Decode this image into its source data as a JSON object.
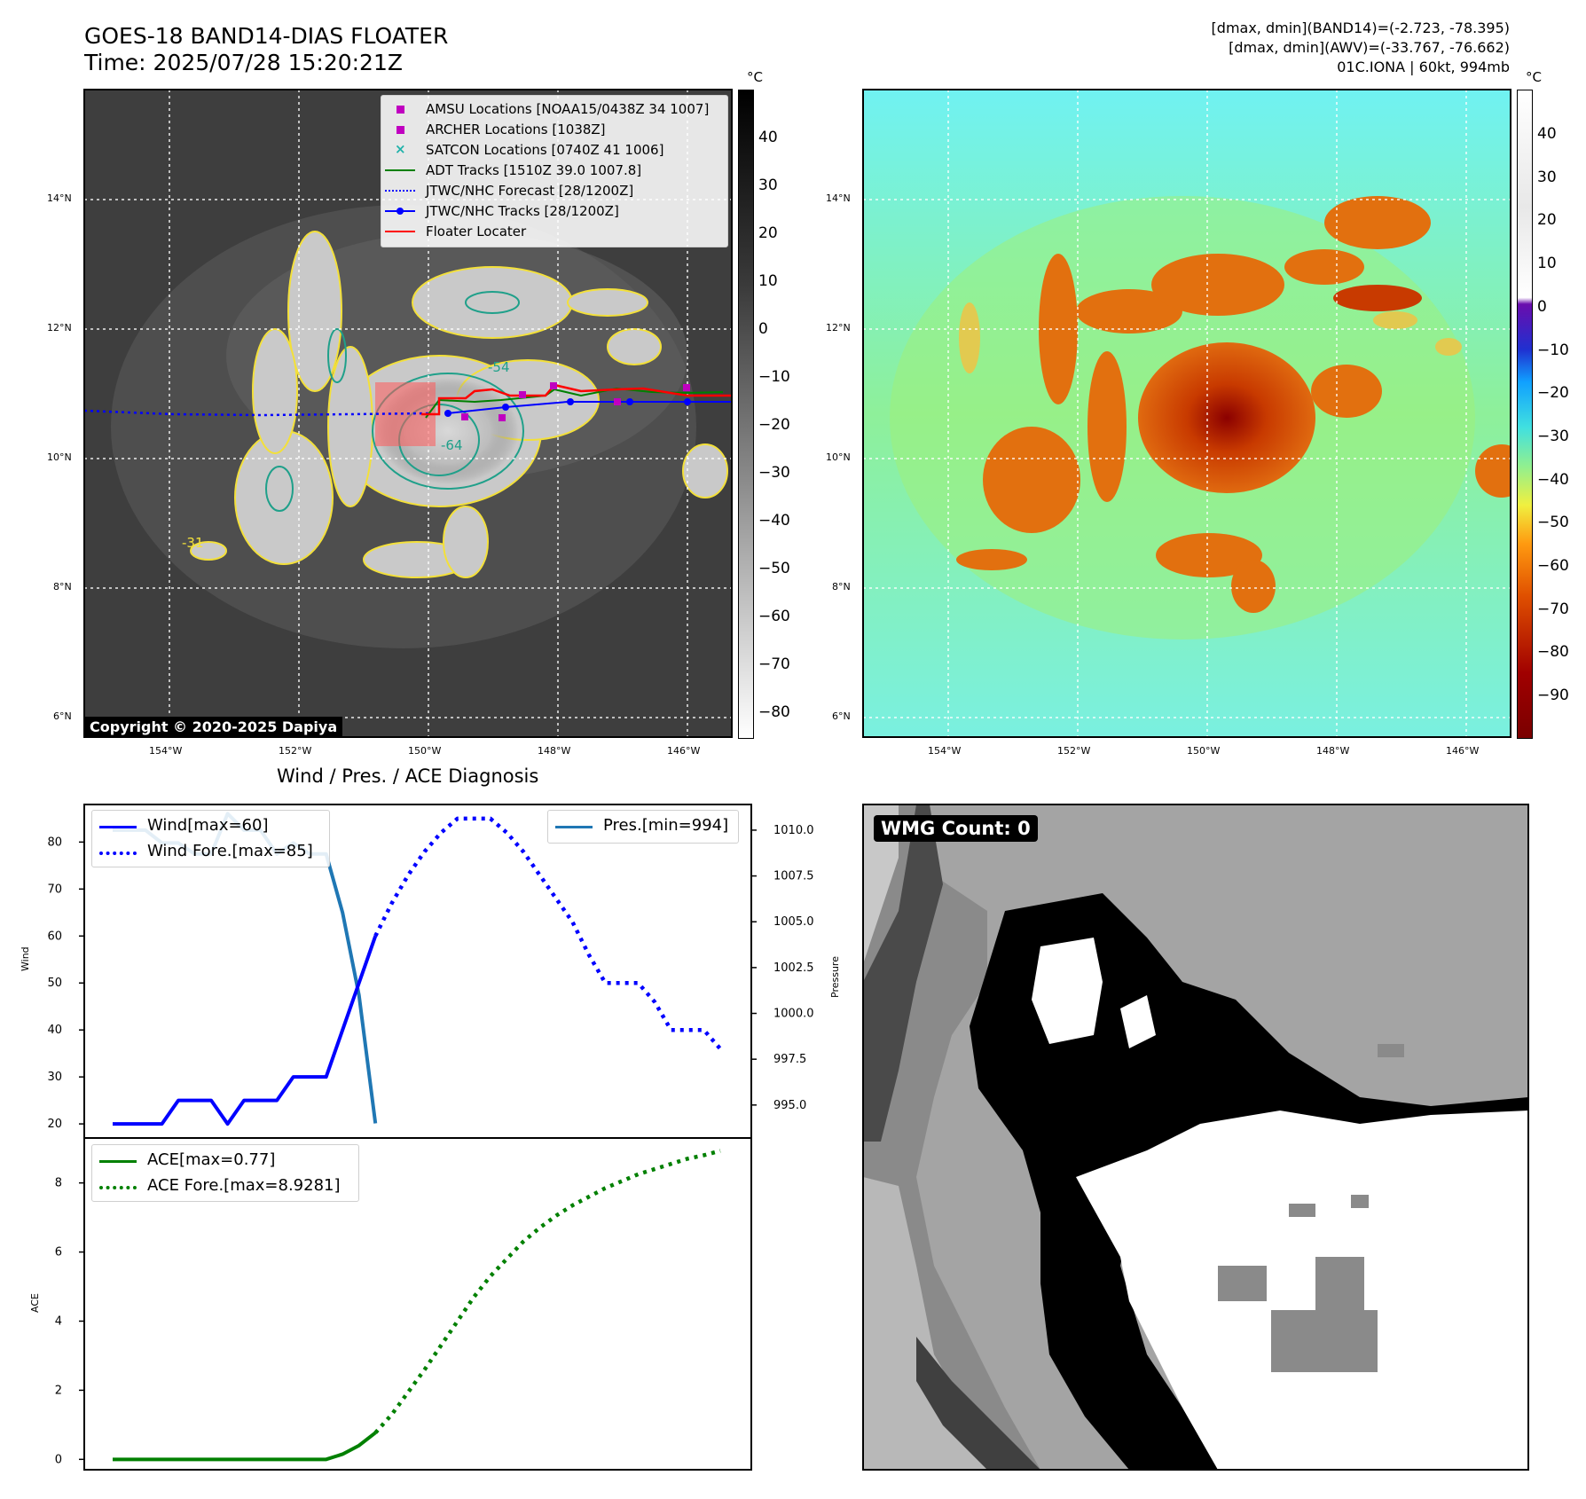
{
  "header": {
    "title_line1": "GOES-18 BAND14-DIAS FLOATER",
    "title_line2": "Time: 2025/07/28 15:20:21Z",
    "stats_line1": "[dmax, dmin](BAND14)=(-2.723, -78.395)",
    "stats_line2": "[dmax, dmin](AWV)=(-33.767, -76.662)",
    "stats_line3": "01C.IONA | 60kt, 994mb"
  },
  "colorbar_unit": "°C",
  "map": {
    "lat_ticks": [
      "14°N",
      "12°N",
      "10°N",
      "8°N",
      "6°N"
    ],
    "lon_ticks": [
      "154°W",
      "152°W",
      "150°W",
      "148°W",
      "146°W"
    ],
    "copyright": "Copyright © 2020-2025 Dapiya",
    "contour_labels": [
      "-31",
      "-54",
      "-64"
    ],
    "legend": [
      {
        "label": "AMSU Locations [NOAA15/0438Z 34 1007]",
        "color": "#c000c0",
        "marker": "square"
      },
      {
        "label": "ARCHER Locations [1038Z]",
        "color": "#c000c0",
        "marker": "square"
      },
      {
        "label": "SATCON Locations [0740Z 41 1006]",
        "color": "#20b2aa",
        "marker": "x"
      },
      {
        "label": "ADT Tracks [1510Z 39.0 1007.8]",
        "color": "#008000",
        "marker": "line"
      },
      {
        "label": "JTWC/NHC Forecast [28/1200Z]",
        "color": "#0000ff",
        "marker": "dotted"
      },
      {
        "label": "JTWC/NHC Tracks [28/1200Z]",
        "color": "#0000ff",
        "marker": "line-dot"
      },
      {
        "label": "Floater Locater",
        "color": "#ff0000",
        "marker": "line"
      }
    ],
    "colorbar_gray_ticks": [
      "40",
      "30",
      "20",
      "10",
      "0",
      "−10",
      "−20",
      "−30",
      "−40",
      "−50",
      "−60",
      "−70",
      "−80"
    ],
    "colorbar_color_ticks": [
      "40",
      "30",
      "20",
      "10",
      "0",
      "−10",
      "−20",
      "−30",
      "−40",
      "−50",
      "−60",
      "−70",
      "−80",
      "−90"
    ]
  },
  "diag": {
    "title": "Wind / Pres. / ACE Diagnosis",
    "wind_ylabel": "Wind",
    "pres_ylabel": "Pressure",
    "ace_ylabel": "ACE",
    "wind_legend": [
      "Wind[max=60]",
      "Wind Fore.[max=85]"
    ],
    "pres_legend": [
      "Pres.[min=994]"
    ],
    "ace_legend": [
      "ACE[max=0.77]",
      "ACE Fore.[max=8.9281]"
    ],
    "wmg": "WMG Count: 0"
  },
  "chart_data": [
    {
      "type": "line",
      "title": "Wind / Pres. / ACE Diagnosis",
      "ylabel": "Wind",
      "ylim": [
        17,
        88
      ],
      "yticks": [
        20,
        30,
        40,
        50,
        60,
        70,
        80
      ],
      "series": [
        {
          "name": "Wind[max=60]",
          "color": "#0000ff",
          "style": "solid",
          "x": [
            0,
            1,
            2,
            3,
            4,
            5,
            6,
            7,
            8,
            9,
            10,
            11,
            12,
            13,
            14,
            15,
            16
          ],
          "values": [
            20,
            20,
            20,
            20,
            25,
            25,
            25,
            20,
            25,
            25,
            25,
            30,
            30,
            30,
            40,
            50,
            60
          ]
        },
        {
          "name": "Wind Fore.[max=85]",
          "color": "#0000ff",
          "style": "dotted",
          "x": [
            16,
            17,
            18,
            19,
            20,
            21,
            22,
            23,
            24,
            25,
            26,
            27,
            28,
            29,
            30,
            31,
            32,
            33,
            34,
            35,
            36,
            37
          ],
          "values": [
            60,
            67,
            73,
            78,
            82,
            85,
            85,
            85,
            82,
            78,
            73,
            68,
            63,
            56,
            50,
            50,
            50,
            46,
            40,
            40,
            40,
            36
          ]
        }
      ]
    },
    {
      "type": "line",
      "ylabel": "Pressure",
      "ylim": [
        993.2,
        1011.4
      ],
      "yticks": [
        995.0,
        997.5,
        1000.0,
        1002.5,
        1005.0,
        1007.5,
        1010.0
      ],
      "series": [
        {
          "name": "Pres.[min=994]",
          "color": "#1f77b4",
          "style": "solid",
          "x": [
            0,
            1,
            2,
            3,
            4,
            5,
            6,
            7,
            8,
            9,
            10,
            11,
            12,
            13,
            14,
            15,
            16
          ],
          "values": [
            1010.0,
            1010.0,
            1010.0,
            1009.3,
            1009.3,
            1008.7,
            1008.7,
            1010.9,
            1010.0,
            1010.0,
            1008.7,
            1009.3,
            1008.7,
            1008.7,
            1005.5,
            1001.0,
            994.0
          ]
        }
      ]
    },
    {
      "type": "line",
      "ylabel": "ACE",
      "ylim": [
        -0.3,
        9.3
      ],
      "yticks": [
        0,
        2,
        4,
        6,
        8
      ],
      "series": [
        {
          "name": "ACE[max=0.77]",
          "color": "#008000",
          "style": "solid",
          "x": [
            0,
            1,
            2,
            3,
            4,
            5,
            6,
            7,
            8,
            9,
            10,
            11,
            12,
            13,
            14,
            15,
            16
          ],
          "values": [
            0,
            0,
            0,
            0,
            0,
            0,
            0,
            0,
            0,
            0,
            0,
            0,
            0,
            0,
            0.15,
            0.4,
            0.77
          ]
        },
        {
          "name": "ACE Fore.[max=8.9281]",
          "color": "#008000",
          "style": "dotted",
          "x": [
            16,
            17,
            18,
            19,
            20,
            21,
            22,
            23,
            24,
            25,
            26,
            27,
            28,
            29,
            30,
            31,
            32,
            33,
            34,
            35,
            36,
            37
          ],
          "values": [
            0.77,
            1.3,
            1.95,
            2.6,
            3.3,
            4.0,
            4.7,
            5.3,
            5.8,
            6.3,
            6.7,
            7.05,
            7.35,
            7.6,
            7.85,
            8.05,
            8.25,
            8.4,
            8.55,
            8.7,
            8.8,
            8.93
          ]
        }
      ]
    }
  ]
}
